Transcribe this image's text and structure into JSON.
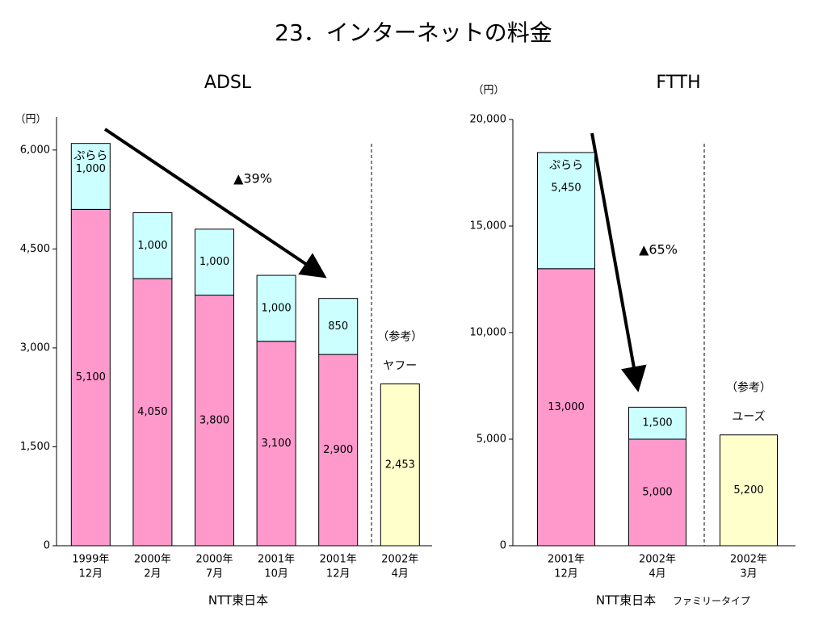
{
  "title": "23．インターネットの料金",
  "chart_data": [
    {
      "type": "bar",
      "stacked": true,
      "title": "ADSL",
      "y_unit": "（円）",
      "categories": [
        [
          "1999年",
          "12月"
        ],
        [
          "2000年",
          "2月"
        ],
        [
          "2000年",
          "7月"
        ],
        [
          "2001年",
          "10月"
        ],
        [
          "2001年",
          "12月"
        ],
        [
          "2002年",
          "4月"
        ]
      ],
      "group_label": "NTT東日本",
      "series": [
        {
          "color": "#ff99cc",
          "values": [
            5100,
            4050,
            3800,
            3100,
            2900,
            null
          ],
          "value_labels": [
            "5,100",
            "4,050",
            "3,800",
            "3,100",
            "2,900",
            null
          ]
        },
        {
          "name": "ぷらら",
          "color": "#ccffff",
          "values": [
            1000,
            1000,
            1000,
            1000,
            850,
            null
          ],
          "value_labels": [
            "1,000",
            "1,000",
            "1,000",
            "1,000",
            "850",
            null
          ]
        },
        {
          "name": "ヤフー",
          "color": "#ffffcc",
          "values": [
            null,
            null,
            null,
            null,
            null,
            2453
          ],
          "value_labels": [
            null,
            null,
            null,
            null,
            null,
            "2,453"
          ]
        }
      ],
      "note": "（参考）",
      "annotation": "▲39%",
      "ylim": [
        0,
        6500
      ],
      "yticks": [
        0,
        {
          "value": 1500,
          "label": "1,500"
        },
        {
          "value": 3000,
          "label": "3,000"
        },
        {
          "value": 4500,
          "label": "4,500"
        },
        {
          "value": 6000,
          "label": "6,000"
        }
      ]
    },
    {
      "type": "bar",
      "stacked": true,
      "title": "FTTH",
      "y_unit": "（円）",
      "categories": [
        [
          "2001年",
          "12月"
        ],
        [
          "2002年",
          "4月"
        ],
        [
          "2002年",
          "3月"
        ]
      ],
      "group_label": "NTT東日本",
      "group_sublabel": "ファミリータイプ",
      "series": [
        {
          "color": "#ff99cc",
          "values": [
            13000,
            5000,
            null
          ],
          "value_labels": [
            "13,000",
            "5,000",
            null
          ]
        },
        {
          "name": "ぷらら",
          "color": "#ccffff",
          "values": [
            5450,
            1500,
            null
          ],
          "value_labels": [
            "5,450",
            "1,500",
            null
          ]
        },
        {
          "name": "ユーズ",
          "color": "#ffffcc",
          "values": [
            null,
            null,
            5200
          ],
          "value_labels": [
            null,
            null,
            "5,200"
          ]
        }
      ],
      "note": "（参考）",
      "annotation": "▲65%",
      "ylim": [
        0,
        20000
      ],
      "yticks": [
        0,
        {
          "value": 5000,
          "label": "5,000"
        },
        {
          "value": 10000,
          "label": "10,000"
        },
        {
          "value": 15000,
          "label": "15,000"
        },
        {
          "value": 20000,
          "label": "20,000"
        }
      ]
    }
  ]
}
